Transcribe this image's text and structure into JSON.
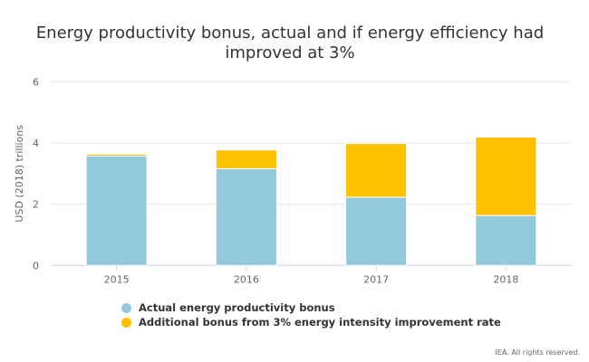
{
  "chart_data": {
    "type": "bar",
    "stacked": true,
    "title": "Energy productivity bonus, actual and if energy efficiency had improved at 3%",
    "ylabel": "USD (2018) trillions",
    "xlabel": "",
    "ylim": [
      0,
      6
    ],
    "yticks": [
      0,
      2,
      4,
      6
    ],
    "grid": true,
    "legend_position": "bottom",
    "categories": [
      "2015",
      "2016",
      "2017",
      "2018"
    ],
    "series": [
      {
        "name": "Actual energy productivity bonus",
        "color": "#93cadb",
        "values": [
          3.57,
          3.16,
          2.23,
          1.63
        ]
      },
      {
        "name": "Additional bonus from 3% energy intensity improvement rate",
        "color": "#ffc000",
        "values": [
          0.06,
          0.61,
          1.75,
          2.56
        ]
      }
    ]
  },
  "credit": "IEA. All rights reserved."
}
